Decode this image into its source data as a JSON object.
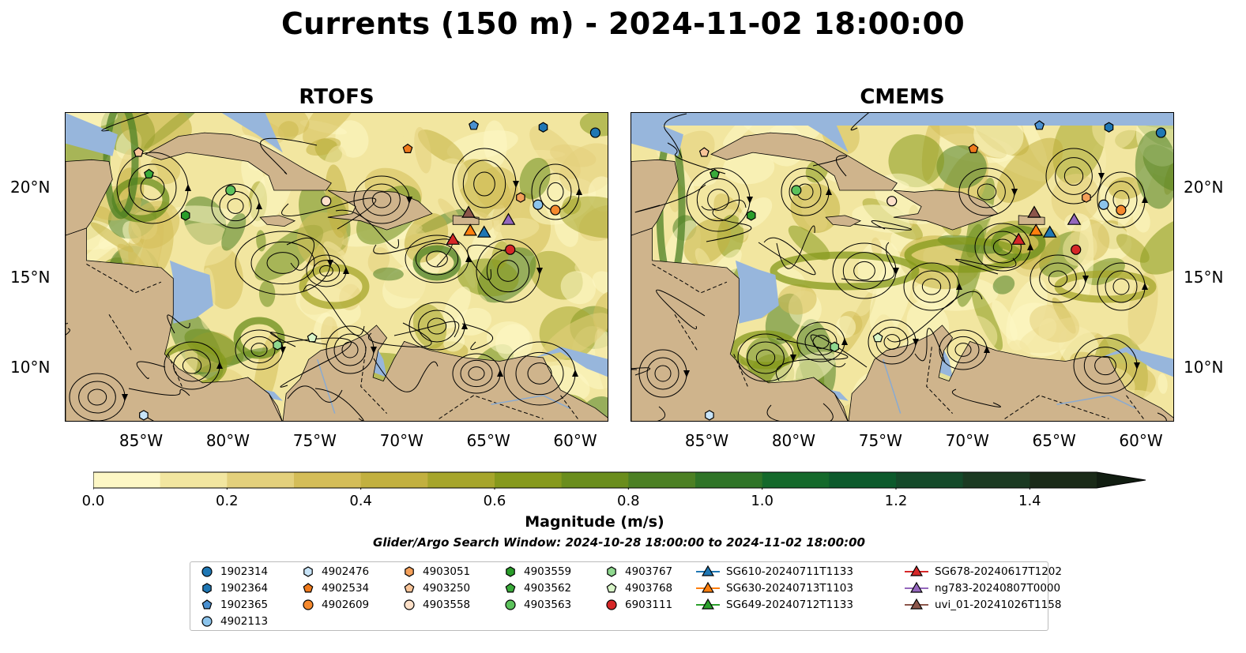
{
  "title": "Currents (150 m) - 2024-11-02 18:00:00",
  "panels": [
    {
      "title": "RTOFS"
    },
    {
      "title": "CMEMS"
    }
  ],
  "lon_labels": [
    "85°W",
    "80°W",
    "75°W",
    "70°W",
    "65°W",
    "60°W"
  ],
  "lat_labels": [
    "20°N",
    "15°N",
    "10°N"
  ],
  "colorbar": {
    "label": "Magnitude (m/s)",
    "ticks": [
      "0.0",
      "0.2",
      "0.4",
      "0.6",
      "0.8",
      "1.0",
      "1.2",
      "1.4"
    ],
    "colors": [
      "#fdf7c5",
      "#f2e6a0",
      "#e3d07c",
      "#d4bd58",
      "#c2b03f",
      "#a6a52b",
      "#86991c",
      "#6a8d1c",
      "#4c8024",
      "#2f7427",
      "#14692b",
      "#0c5a2c",
      "#144a2a",
      "#1b3a22",
      "#1a2a18",
      "#111d11"
    ]
  },
  "search_window": "Glider/Argo Search Window: 2024-10-28 18:00:00 to 2024-11-02 18:00:00",
  "colors": {
    "land": "#cfb48c",
    "water_shallow": "#97b6dc",
    "streamline": "#000000"
  },
  "legend": [
    {
      "label": "1902314",
      "marker": "circle",
      "color": "#1f77b4"
    },
    {
      "label": "1902364",
      "marker": "hexagon",
      "color": "#1f77b4"
    },
    {
      "label": "1902365",
      "marker": "pentagon",
      "color": "#4a90d0"
    },
    {
      "label": "4902113",
      "marker": "circle",
      "color": "#8cc4ec"
    },
    {
      "label": "4902476",
      "marker": "hexagon",
      "color": "#c8e4f8"
    },
    {
      "label": "4902534",
      "marker": "pentagon",
      "color": "#f07a1c"
    },
    {
      "label": "4902609",
      "marker": "circle",
      "color": "#f5892e"
    },
    {
      "label": "4903051",
      "marker": "hexagon",
      "color": "#f4a05a"
    },
    {
      "label": "4903250",
      "marker": "pentagon",
      "color": "#f8c498"
    },
    {
      "label": "4903558",
      "marker": "circle",
      "color": "#fde0c8"
    },
    {
      "label": "4903559",
      "marker": "hexagon",
      "color": "#2a9d2a"
    },
    {
      "label": "4903562",
      "marker": "pentagon",
      "color": "#3aab3a"
    },
    {
      "label": "4903563",
      "marker": "circle",
      "color": "#5cc25c"
    },
    {
      "label": "4903767",
      "marker": "hexagon",
      "color": "#8fd88f"
    },
    {
      "label": "4903768",
      "marker": "pentagon",
      "color": "#d8f5c8"
    },
    {
      "label": "6903111",
      "marker": "circle",
      "color": "#d62728"
    },
    {
      "label": "SG610-20240711T1133",
      "marker": "triangle",
      "color": "#1f77b4"
    },
    {
      "label": "SG630-20240713T1103",
      "marker": "triangle",
      "color": "#ff7f0e"
    },
    {
      "label": "SG649-20240712T1133",
      "marker": "triangle",
      "color": "#2ca02c"
    },
    {
      "label": "SG678-20240617T1202",
      "marker": "triangle",
      "color": "#d62728"
    },
    {
      "label": "ng783-20240807T0000",
      "marker": "triangle",
      "color": "#9467bd"
    },
    {
      "label": "uvi_01-20241026T1158",
      "marker": "triangle",
      "color": "#8c564b"
    }
  ]
}
